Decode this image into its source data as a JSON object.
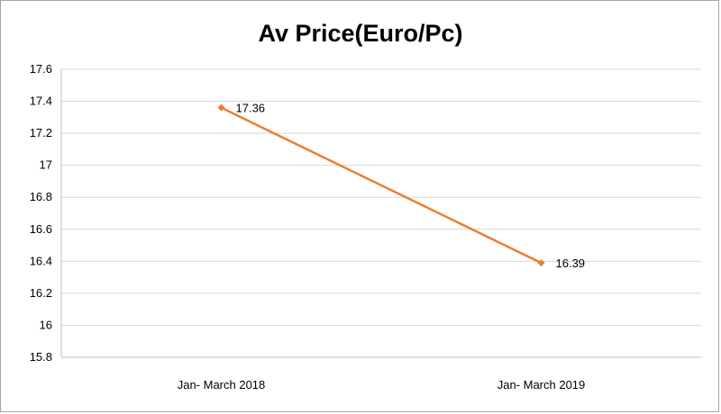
{
  "chart_data": {
    "type": "line",
    "title": "Av Price(Euro/Pc)",
    "xlabel": "",
    "ylabel": "",
    "categories": [
      "Jan- March 2018",
      "Jan- March 2019"
    ],
    "series": [
      {
        "values": [
          17.36,
          16.39
        ],
        "color": "#ed7d31",
        "data_labels": [
          "17.36",
          "16.39"
        ]
      }
    ],
    "ylim": [
      15.8,
      17.6
    ],
    "yticks": [
      "15.8",
      "16",
      "16.2",
      "16.4",
      "16.6",
      "16.8",
      "17",
      "17.2",
      "17.4",
      "17.6"
    ],
    "grid": true,
    "legend": "none"
  }
}
